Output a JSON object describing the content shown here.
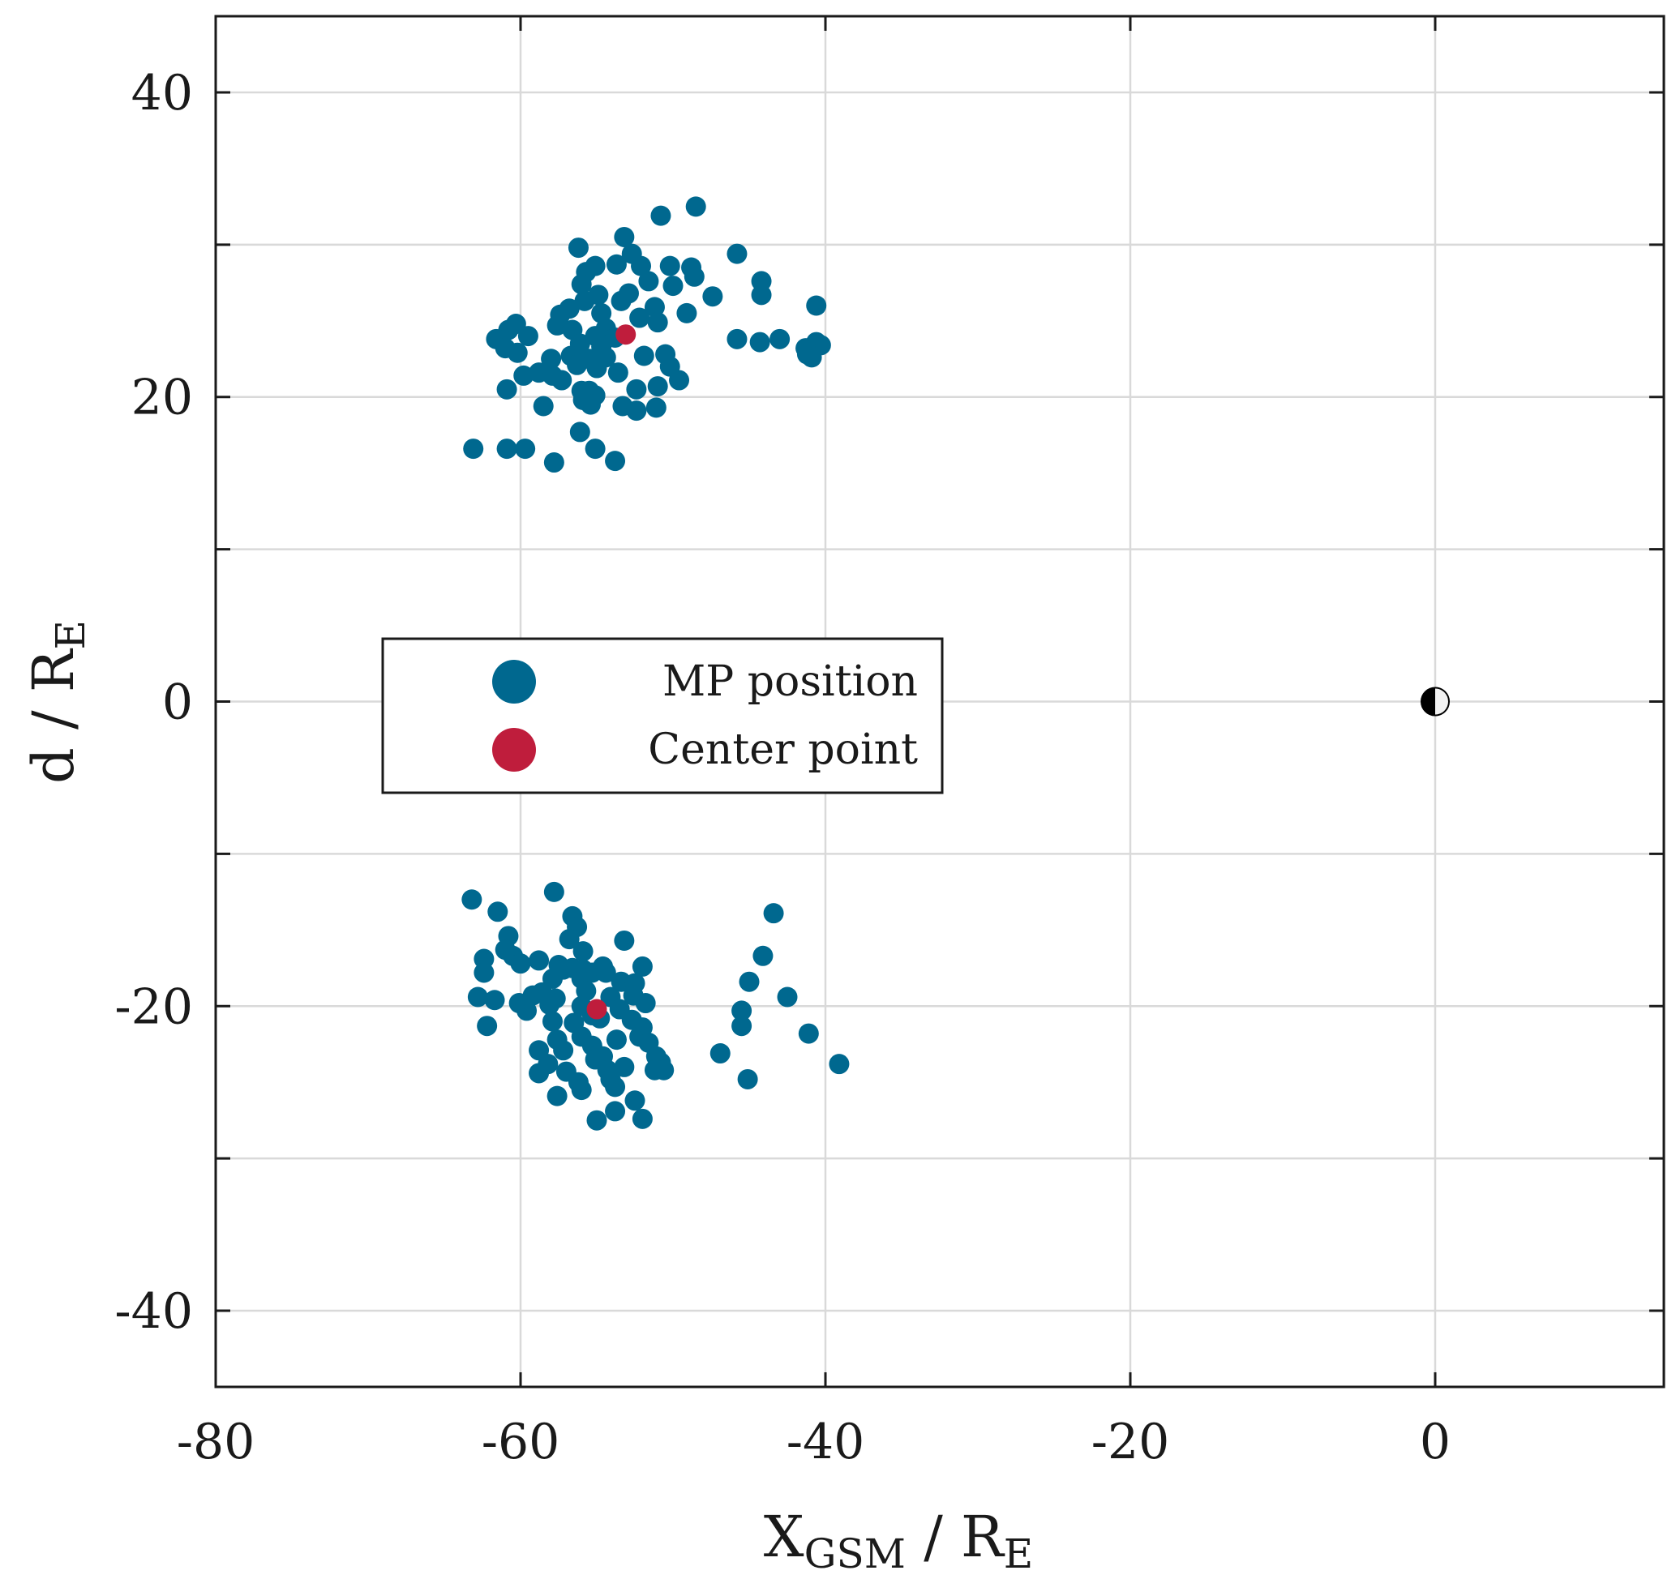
{
  "chart_data": {
    "type": "scatter",
    "title": "",
    "xlabel": {
      "main": "X",
      "sub": "GSM",
      "suffix": " / R",
      "suffix_sub": "E"
    },
    "ylabel": {
      "main": "d / R",
      "sub": "E"
    },
    "xlim": [
      -80,
      15
    ],
    "ylim": [
      -45,
      45
    ],
    "xticks": [
      -80,
      -60,
      -40,
      -20,
      0
    ],
    "xtick_labels": [
      "-80",
      "-60",
      "-40",
      "-20",
      "0"
    ],
    "yticks": [
      -40,
      -20,
      0,
      20,
      40
    ],
    "ytick_labels": [
      "-40",
      "-20",
      "0",
      "20",
      "40"
    ],
    "grid": true,
    "legend": {
      "placement": "center-left",
      "entries": [
        "MP position",
        "Center point"
      ]
    },
    "colors": {
      "mp": "#00688f",
      "center": "#bf1d3c",
      "axis": "#1a1a1a",
      "grid": "#d9d9d9"
    },
    "series": [
      {
        "name": "MP position",
        "points": [
          [
            -48.5,
            32.5
          ],
          [
            -50.8,
            31.9
          ],
          [
            -53.2,
            30.5
          ],
          [
            -56.2,
            29.8
          ],
          [
            -52.7,
            29.4
          ],
          [
            -45.8,
            29.4
          ],
          [
            -52.1,
            28.6
          ],
          [
            -53.7,
            28.7
          ],
          [
            -50.2,
            28.6
          ],
          [
            -48.8,
            28.5
          ],
          [
            -55.7,
            28.2
          ],
          [
            -55.1,
            28.6
          ],
          [
            -44.2,
            27.6
          ],
          [
            -56.0,
            27.4
          ],
          [
            -51.6,
            27.6
          ],
          [
            -50.0,
            27.3
          ],
          [
            -48.6,
            27.9
          ],
          [
            -52.9,
            26.8
          ],
          [
            -47.4,
            26.6
          ],
          [
            -44.2,
            26.7
          ],
          [
            -40.6,
            26.0
          ],
          [
            -55.8,
            26.3
          ],
          [
            -54.9,
            26.7
          ],
          [
            -53.4,
            26.3
          ],
          [
            -57.4,
            25.4
          ],
          [
            -56.8,
            25.8
          ],
          [
            -54.7,
            25.5
          ],
          [
            -51.2,
            25.9
          ],
          [
            -49.1,
            25.5
          ],
          [
            -52.2,
            25.2
          ],
          [
            -57.6,
            24.7
          ],
          [
            -56.6,
            24.4
          ],
          [
            -55.1,
            24.0
          ],
          [
            -54.4,
            24.5
          ],
          [
            -51.0,
            24.9
          ],
          [
            -60.8,
            24.4
          ],
          [
            -60.3,
            24.8
          ],
          [
            -61.6,
            23.8
          ],
          [
            -59.5,
            24.0
          ],
          [
            -56.1,
            23.5
          ],
          [
            -54.7,
            23.3
          ],
          [
            -53.8,
            23.9
          ],
          [
            -45.8,
            23.8
          ],
          [
            -44.3,
            23.6
          ],
          [
            -43.0,
            23.8
          ],
          [
            -40.6,
            23.6
          ],
          [
            -40.3,
            23.4
          ],
          [
            -41.3,
            23.2
          ],
          [
            -61.0,
            23.2
          ],
          [
            -60.2,
            22.9
          ],
          [
            -56.7,
            22.7
          ],
          [
            -55.5,
            22.5
          ],
          [
            -54.4,
            22.6
          ],
          [
            -51.9,
            22.7
          ],
          [
            -50.5,
            22.8
          ],
          [
            -41.2,
            22.8
          ],
          [
            -40.9,
            22.6
          ],
          [
            -58.0,
            22.5
          ],
          [
            -56.3,
            22.1
          ],
          [
            -55.0,
            21.9
          ],
          [
            -53.6,
            21.6
          ],
          [
            -50.2,
            22.0
          ],
          [
            -59.8,
            21.4
          ],
          [
            -58.8,
            21.6
          ],
          [
            -57.9,
            21.4
          ],
          [
            -57.3,
            21.1
          ],
          [
            -49.6,
            21.1
          ],
          [
            -60.9,
            20.5
          ],
          [
            -56.0,
            20.4
          ],
          [
            -55.5,
            20.4
          ],
          [
            -55.1,
            20.1
          ],
          [
            -52.4,
            20.5
          ],
          [
            -51.0,
            20.7
          ],
          [
            -55.9,
            19.8
          ],
          [
            -55.4,
            19.5
          ],
          [
            -53.3,
            19.4
          ],
          [
            -52.4,
            19.1
          ],
          [
            -51.1,
            19.3
          ],
          [
            -58.5,
            19.4
          ],
          [
            -56.1,
            17.7
          ],
          [
            -63.1,
            16.6
          ],
          [
            -60.9,
            16.6
          ],
          [
            -59.7,
            16.6
          ],
          [
            -55.1,
            16.6
          ],
          [
            -57.8,
            15.7
          ],
          [
            -53.8,
            15.8
          ],
          [
            -63.2,
            -13.0
          ],
          [
            -57.8,
            -12.5
          ],
          [
            -61.5,
            -13.8
          ],
          [
            -43.4,
            -13.9
          ],
          [
            -56.6,
            -14.1
          ],
          [
            -56.3,
            -14.8
          ],
          [
            -60.8,
            -15.4
          ],
          [
            -56.8,
            -15.6
          ],
          [
            -53.2,
            -15.7
          ],
          [
            -61.0,
            -16.3
          ],
          [
            -55.9,
            -16.4
          ],
          [
            -60.5,
            -16.7
          ],
          [
            -44.1,
            -16.7
          ],
          [
            -62.4,
            -16.9
          ],
          [
            -60.0,
            -17.2
          ],
          [
            -58.8,
            -17.0
          ],
          [
            -57.5,
            -17.3
          ],
          [
            -56.6,
            -17.5
          ],
          [
            -55.9,
            -17.6
          ],
          [
            -54.6,
            -17.4
          ],
          [
            -52.0,
            -17.4
          ],
          [
            -57.9,
            -18.2
          ],
          [
            -57.2,
            -17.6
          ],
          [
            -56.0,
            -18.2
          ],
          [
            -55.3,
            -17.8
          ],
          [
            -54.4,
            -17.8
          ],
          [
            -53.4,
            -18.4
          ],
          [
            -62.4,
            -17.8
          ],
          [
            -52.5,
            -18.5
          ],
          [
            -45.0,
            -18.4
          ],
          [
            -59.2,
            -19.3
          ],
          [
            -58.6,
            -19.1
          ],
          [
            -57.7,
            -19.5
          ],
          [
            -55.7,
            -19.0
          ],
          [
            -54.1,
            -19.4
          ],
          [
            -52.6,
            -19.3
          ],
          [
            -60.1,
            -19.8
          ],
          [
            -58.1,
            -19.9
          ],
          [
            -56.0,
            -20.0
          ],
          [
            -55.3,
            -20.6
          ],
          [
            -53.5,
            -20.2
          ],
          [
            -51.8,
            -19.8
          ],
          [
            -62.8,
            -19.4
          ],
          [
            -61.7,
            -19.6
          ],
          [
            -42.5,
            -19.4
          ],
          [
            -59.6,
            -20.3
          ],
          [
            -57.9,
            -21.0
          ],
          [
            -56.5,
            -21.1
          ],
          [
            -54.8,
            -20.8
          ],
          [
            -52.7,
            -20.9
          ],
          [
            -45.5,
            -20.3
          ],
          [
            -52.0,
            -21.4
          ],
          [
            -62.2,
            -21.3
          ],
          [
            -45.5,
            -21.3
          ],
          [
            -57.6,
            -22.2
          ],
          [
            -56.0,
            -22.0
          ],
          [
            -55.3,
            -22.6
          ],
          [
            -53.7,
            -22.2
          ],
          [
            -52.2,
            -22.0
          ],
          [
            -51.6,
            -22.4
          ],
          [
            -41.1,
            -21.8
          ],
          [
            -57.2,
            -22.9
          ],
          [
            -55.1,
            -23.5
          ],
          [
            -54.6,
            -23.3
          ],
          [
            -51.1,
            -23.3
          ],
          [
            -50.8,
            -23.7
          ],
          [
            -58.8,
            -22.9
          ],
          [
            -46.9,
            -23.1
          ],
          [
            -58.2,
            -23.8
          ],
          [
            -57.0,
            -24.3
          ],
          [
            -54.3,
            -24.2
          ],
          [
            -53.2,
            -24.0
          ],
          [
            -51.2,
            -24.2
          ],
          [
            -50.6,
            -24.2
          ],
          [
            -39.1,
            -23.8
          ],
          [
            -56.2,
            -25.0
          ],
          [
            -54.1,
            -24.8
          ],
          [
            -53.8,
            -25.3
          ],
          [
            -58.8,
            -24.4
          ],
          [
            -45.1,
            -24.8
          ],
          [
            -56.0,
            -25.5
          ],
          [
            -57.6,
            -25.9
          ],
          [
            -52.5,
            -26.2
          ],
          [
            -53.8,
            -26.9
          ],
          [
            -55.0,
            -27.5
          ],
          [
            -52.0,
            -27.4
          ]
        ]
      },
      {
        "name": "Center point",
        "points": [
          [
            -53.1,
            24.1
          ],
          [
            -55.0,
            -20.2
          ]
        ]
      }
    ],
    "annotations": [
      {
        "name": "earth-marker",
        "x": 0,
        "y": 0,
        "style": "half-black-half-white-circle"
      }
    ]
  }
}
